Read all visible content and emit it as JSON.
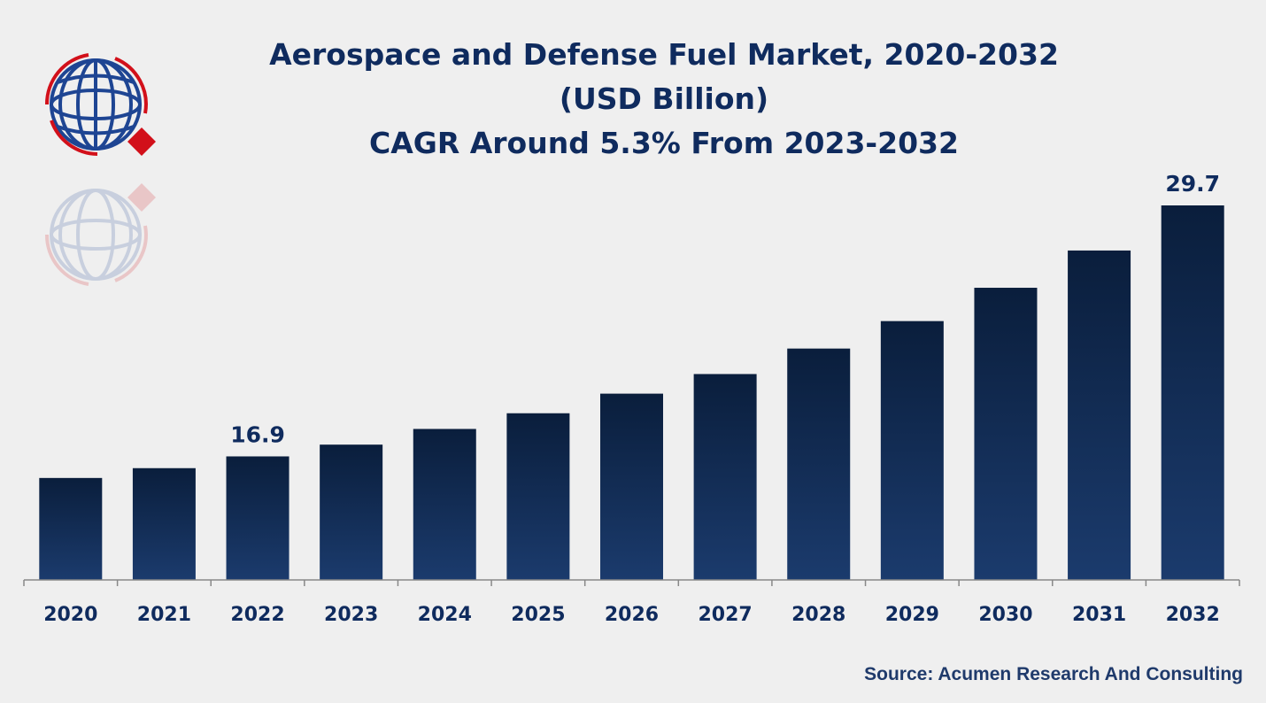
{
  "chart_data": {
    "type": "bar",
    "title": [
      "Aerospace and Defense Fuel Market, 2020-2032",
      "(USD Billion)",
      "CAGR Around 5.3% From 2023-2032"
    ],
    "xlabel": "",
    "ylabel": "USD Billion",
    "categories": [
      "2020",
      "2021",
      "2022",
      "2023",
      "2024",
      "2025",
      "2026",
      "2027",
      "2028",
      "2029",
      "2030",
      "2031",
      "2032"
    ],
    "values": [
      15.8,
      16.3,
      16.9,
      17.5,
      18.3,
      19.1,
      20.1,
      21.1,
      22.4,
      23.8,
      25.5,
      27.4,
      29.7
    ],
    "data_labels": {
      "2022": "16.9",
      "2032": "29.7"
    },
    "ylim": [
      10.6,
      31
    ],
    "grid": false,
    "colors": {
      "bar_top": "#0a1e3c",
      "bar_bottom": "#1b3b6d",
      "text": "#0f2b5e"
    }
  },
  "source": "Source: Acumen Research And Consulting"
}
